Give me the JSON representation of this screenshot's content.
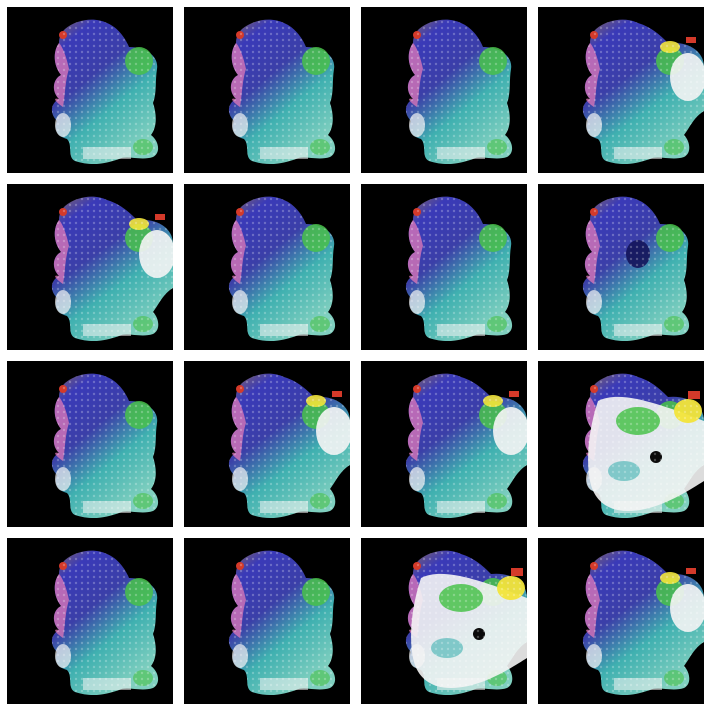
{
  "grid": {
    "rows": 4,
    "cols": 4,
    "background": "#ffffff",
    "tile_background": "#000000"
  },
  "tiles": [
    {
      "variant": "base",
      "bright_patch": "none"
    },
    {
      "variant": "base",
      "bright_patch": "none"
    },
    {
      "variant": "base",
      "bright_patch": "none"
    },
    {
      "variant": "bright-right",
      "bright_patch": "right"
    },
    {
      "variant": "bright-right",
      "bright_patch": "right"
    },
    {
      "variant": "base",
      "bright_patch": "none"
    },
    {
      "variant": "base",
      "bright_patch": "none"
    },
    {
      "variant": "dark-center",
      "bright_patch": "none"
    },
    {
      "variant": "base",
      "bright_patch": "none"
    },
    {
      "variant": "bright-right",
      "bright_patch": "right"
    },
    {
      "variant": "bright-right",
      "bright_patch": "right"
    },
    {
      "variant": "overexposed",
      "bright_patch": "large"
    },
    {
      "variant": "base",
      "bright_patch": "none"
    },
    {
      "variant": "base",
      "bright_patch": "none"
    },
    {
      "variant": "overexposed",
      "bright_patch": "large"
    },
    {
      "variant": "bright-right",
      "bright_patch": "right"
    }
  ],
  "palette": {
    "blue": "#3a3ab8",
    "teal": "#3fb0b0",
    "green": "#49c24a",
    "pink": "#e27ab8",
    "white": "#f4f4f4",
    "yellow": "#f2e43a",
    "red": "#d43a2a",
    "brown": "#8a6a5a"
  }
}
